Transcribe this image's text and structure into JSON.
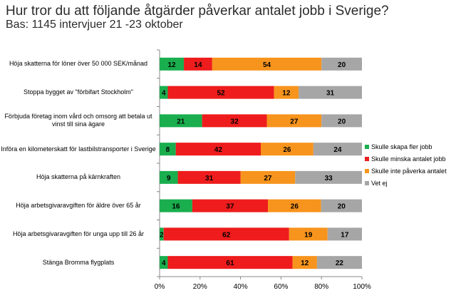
{
  "header": {
    "title": "Hur tror du att följande åtgärder påverkar antalet jobb i Sverige?",
    "subtitle": "Bas: 1145 intervjuer 21 -23 oktober"
  },
  "chart_data": {
    "type": "bar",
    "orientation": "horizontal",
    "stacked": "percent",
    "categories": [
      "Höja skatterna för löner över 50 000 SEK/månad",
      "Stoppa bygget av \"förbifart Stockholm\"",
      "Förbjuda företag inom vård och omsorg att betala ut vinst till sina ägare",
      "Införa en kilometerskatt för lastbilstransporter i Sverige",
      "Höja skatterna på kärnkraften",
      "Höja arbetsgivaravgiften för äldre över 65 år",
      "Höja arbetsgivaravgiften för unga upp till 26 år",
      "Stänga Bromma flygplats"
    ],
    "series": [
      {
        "name": "Skulle skapa fler jobb",
        "color": "#1aae4e",
        "values": [
          12,
          4,
          21,
          8,
          9,
          16,
          2,
          4
        ]
      },
      {
        "name": "Skulle minska antalet jobb",
        "color": "#ee1c1c",
        "values": [
          14,
          52,
          32,
          42,
          31,
          37,
          62,
          61
        ]
      },
      {
        "name": "Skulle inte påverka antalet",
        "color": "#f7941d",
        "values": [
          54,
          12,
          27,
          26,
          27,
          26,
          19,
          12
        ]
      },
      {
        "name": "Vet ej",
        "color": "#a6a6a6",
        "values": [
          20,
          31,
          20,
          24,
          33,
          20,
          17,
          22
        ]
      }
    ],
    "xlim": [
      0,
      100
    ],
    "xticks": [
      "0%",
      "20%",
      "40%",
      "60%",
      "80%",
      "100%"
    ],
    "legend_position": "right",
    "grid": false
  }
}
